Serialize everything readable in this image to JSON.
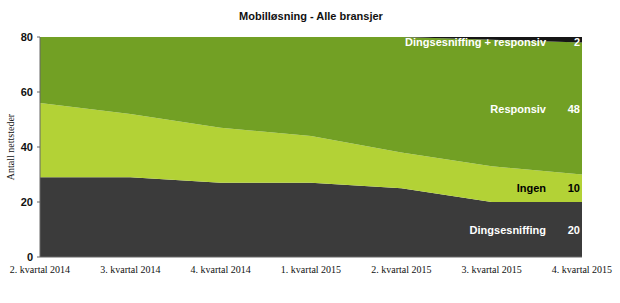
{
  "chart_data": {
    "type": "area",
    "title": "Mobilløsning - Alle bransjer",
    "stacked": true,
    "y_label": "Antall nettsteder",
    "categories": [
      "2. kvartal 2014",
      "3. kvartal 2014",
      "4. kvartal 2014",
      "1. kvartal 2015",
      "2. kvartal 2015",
      "3. kvartal 2015",
      "4. kvartal 2015"
    ],
    "series": [
      {
        "name": "Dingsesniffing",
        "color": "#3b3b3b",
        "values": [
          29,
          29,
          27,
          27,
          25,
          20,
          20
        ]
      },
      {
        "name": "Ingen",
        "color": "#b3d236",
        "values": [
          27,
          23,
          20,
          17,
          13,
          13,
          10
        ]
      },
      {
        "name": "Responsiv",
        "color": "#72a024",
        "values": [
          24,
          28,
          33,
          36,
          42,
          46,
          48
        ]
      },
      {
        "name": "Dingsesniffing + responsiv",
        "color": "#161616",
        "values": [
          0,
          0,
          0,
          0,
          0,
          1,
          2
        ]
      }
    ],
    "ylim": [
      0,
      80
    ],
    "yticks": [
      0,
      20,
      40,
      60,
      80
    ],
    "grid": false,
    "data_labels": true
  }
}
